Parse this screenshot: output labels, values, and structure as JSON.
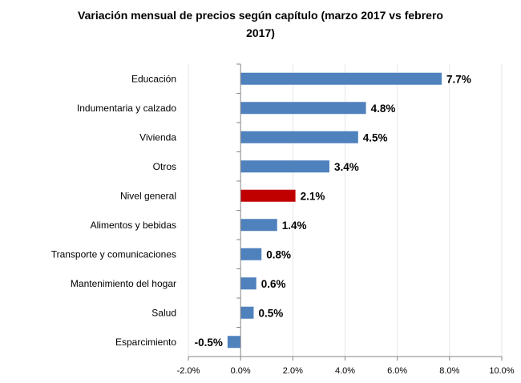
{
  "chart_data": {
    "type": "bar",
    "orientation": "horizontal",
    "title_lines": [
      "Variación mensual de precios según capítulo (marzo 2017 vs febrero",
      "2017)"
    ],
    "categories": [
      "Educación",
      "Indumentaria y calzado",
      "Vivienda",
      "Otros",
      "Nivel general",
      "Alimentos y bebidas",
      "Transporte y comunicaciones",
      "Mantenimiento del hogar",
      "Salud",
      "Esparcimiento"
    ],
    "values": [
      7.7,
      4.8,
      4.5,
      3.4,
      2.1,
      1.4,
      0.8,
      0.6,
      0.5,
      -0.5
    ],
    "data_labels": [
      "7.7%",
      "4.8%",
      "4.5%",
      "3.4%",
      "2.1%",
      "1.4%",
      "0.8%",
      "0.6%",
      "0.5%",
      "-0.5%"
    ],
    "highlight_category": "Nivel general",
    "xlim": [
      -2,
      10
    ],
    "xticks": [
      -2,
      0,
      2,
      4,
      6,
      8,
      10
    ],
    "xtick_labels": [
      "-2.0%",
      "0.0%",
      "2.0%",
      "4.0%",
      "6.0%",
      "8.0%",
      "10.0%"
    ],
    "xlabel": "",
    "ylabel": "",
    "grid": "vertical, light",
    "legend": "none",
    "colors": {
      "bar": "#4f81bd",
      "highlight": "#c00000",
      "grid": "#e6e6e6",
      "axis": "#868686"
    }
  }
}
